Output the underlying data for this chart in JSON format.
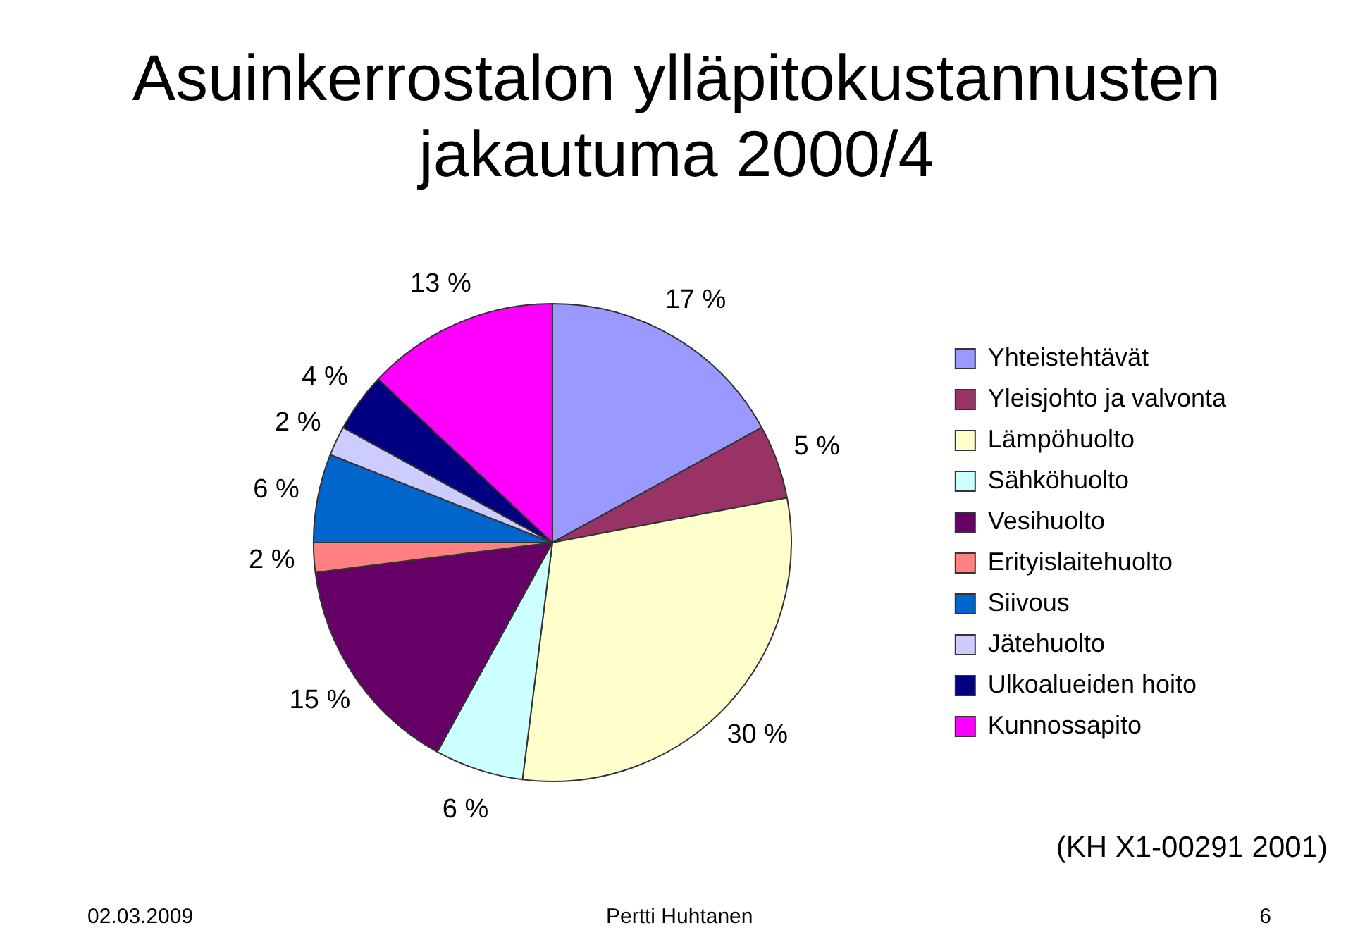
{
  "chart_data": {
    "type": "pie",
    "title": "Asuinkerrostalon ylläpitokustannusten jakautuma 2000/4",
    "categories": [
      "Yhteistehtävät",
      "Yleisjohto ja valvonta",
      "Lämpöhuolto",
      "Sähköhuolto",
      "Vesihuolto",
      "Erityislaitehuolto",
      "Siivous",
      "Jätehuolto",
      "Ulkoalueiden hoito",
      "Kunnossapito"
    ],
    "values": [
      17,
      5,
      30,
      6,
      15,
      2,
      6,
      2,
      4,
      13
    ],
    "colors": [
      "#9999ff",
      "#993366",
      "#ffffcc",
      "#ccffff",
      "#660066",
      "#ff8080",
      "#0066cc",
      "#ccccff",
      "#000080",
      "#ff00ff"
    ],
    "value_labels": [
      "17 %",
      "5 %",
      "30 %",
      "6 %",
      "15 %",
      "2 %",
      "6 %",
      "2 %",
      "4 %",
      "13 %"
    ],
    "legend": "right",
    "annotations": [
      "(KH X1-00291 2001)",
      "02.03.2009",
      "Pertti Huhtanen",
      "6"
    ]
  }
}
